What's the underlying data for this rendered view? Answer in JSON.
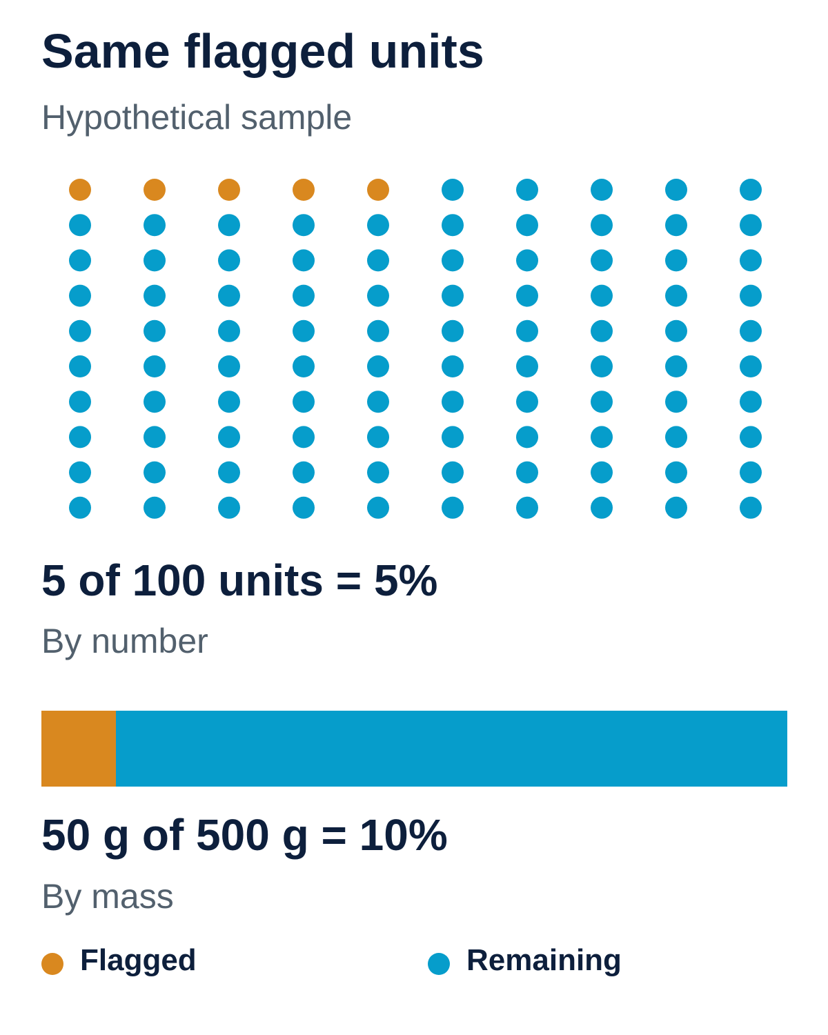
{
  "title": "Same flagged units",
  "subtitle": "Hypothetical sample",
  "colors": {
    "flagged": "#d9881f",
    "remaining": "#069dcb"
  },
  "chart_data": [
    {
      "type": "waffle",
      "total_units": 100,
      "flagged_units": 5,
      "columns": 10,
      "rows": 10,
      "statement": "5 of 100 units = 5%",
      "caption": "By number"
    },
    {
      "type": "stacked-bar",
      "values": [
        {
          "name": "Flagged",
          "value": 50
        },
        {
          "name": "Remaining",
          "value": 450
        }
      ],
      "statement": "50 g of 500 g = 10%",
      "caption": "By mass"
    }
  ],
  "legend": [
    {
      "label": "Flagged"
    },
    {
      "label": "Remaining"
    }
  ]
}
